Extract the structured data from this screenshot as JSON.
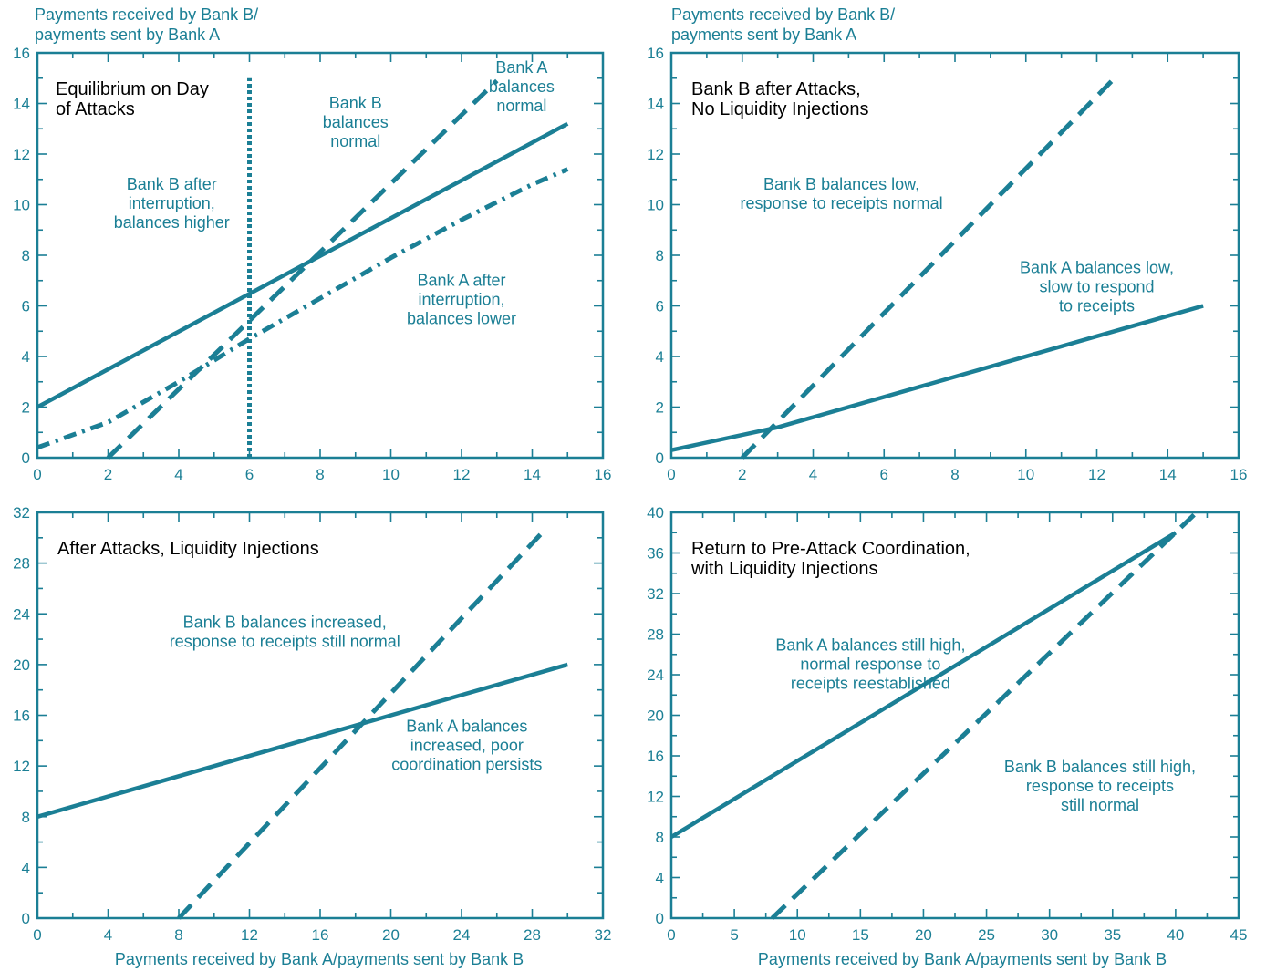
{
  "colors": {
    "accent": "#1b7f95",
    "title_text": "#000000",
    "background": "#ffffff"
  },
  "top_ylabel_line1": "Payments received by Bank B/",
  "top_ylabel_line2": "payments sent by Bank A",
  "bottom_xlabel": "Payments received by Bank A/payments sent by Bank B",
  "chart_data": [
    {
      "type": "line",
      "title_lines": [
        "Equilibrium on Day",
        "of Attacks"
      ],
      "xlim": [
        0,
        16
      ],
      "ylim": [
        0,
        16
      ],
      "xticks": [
        0,
        2,
        4,
        6,
        8,
        10,
        12,
        14,
        16
      ],
      "yticks": [
        0,
        2,
        4,
        6,
        8,
        10,
        12,
        14,
        16
      ],
      "grid": false,
      "series": [
        {
          "style": "solid",
          "points": [
            [
              0,
              2
            ],
            [
              15,
              13.2
            ]
          ]
        },
        {
          "style": "dashed",
          "points": [
            [
              2,
              0
            ],
            [
              13,
              14.9
            ]
          ]
        },
        {
          "style": "dashdot",
          "points": [
            [
              0,
              0.4
            ],
            [
              2,
              1.4
            ],
            [
              4,
              3.0
            ],
            [
              6,
              4.7
            ],
            [
              8,
              6.3
            ],
            [
              10,
              7.9
            ],
            [
              12,
              9.4
            ],
            [
              14,
              10.8
            ],
            [
              15,
              11.4
            ]
          ]
        },
        {
          "style": "dotted",
          "points": [
            [
              6,
              0
            ],
            [
              6,
              15
            ]
          ]
        }
      ],
      "annotations": [
        {
          "x": 13.7,
          "y": 15.2,
          "lines": [
            "Bank A",
            "balances",
            "normal"
          ]
        },
        {
          "x": 9.0,
          "y": 13.8,
          "lines": [
            "Bank B",
            "balances",
            "normal"
          ]
        },
        {
          "x": 3.8,
          "y": 10.6,
          "lines": [
            "Bank B after",
            "interruption,",
            "balances higher"
          ]
        },
        {
          "x": 12.0,
          "y": 6.8,
          "lines": [
            "Bank A after",
            "interruption,",
            "balances lower"
          ]
        }
      ]
    },
    {
      "type": "line",
      "title_lines": [
        "Bank B after Attacks,",
        "No Liquidity Injections"
      ],
      "xlim": [
        0,
        16
      ],
      "ylim": [
        0,
        16
      ],
      "xticks": [
        0,
        2,
        4,
        6,
        8,
        10,
        12,
        14,
        16
      ],
      "yticks": [
        0,
        2,
        4,
        6,
        8,
        10,
        12,
        14,
        16
      ],
      "grid": false,
      "series": [
        {
          "style": "solid",
          "points": [
            [
              0,
              0.3
            ],
            [
              3,
              1.2
            ],
            [
              15,
              6.0
            ]
          ]
        },
        {
          "style": "dashed",
          "points": [
            [
              2,
              0
            ],
            [
              12.5,
              15.0
            ]
          ]
        }
      ],
      "annotations": [
        {
          "x": 4.8,
          "y": 10.6,
          "lines": [
            "Bank B balances low,",
            "response to receipts normal"
          ]
        },
        {
          "x": 12.0,
          "y": 7.3,
          "lines": [
            "Bank A balances low,",
            "slow to respond",
            "to receipts"
          ]
        }
      ]
    },
    {
      "type": "line",
      "title_lines": [
        "After Attacks, Liquidity Injections"
      ],
      "xlim": [
        0,
        32
      ],
      "ylim": [
        0,
        32
      ],
      "xticks": [
        0,
        4,
        8,
        12,
        16,
        20,
        24,
        28,
        32
      ],
      "yticks": [
        0,
        4,
        8,
        12,
        16,
        20,
        24,
        28,
        32
      ],
      "grid": false,
      "series": [
        {
          "style": "solid",
          "points": [
            [
              0,
              8
            ],
            [
              30,
              20
            ]
          ]
        },
        {
          "style": "dashed",
          "points": [
            [
              8,
              0
            ],
            [
              28.5,
              30.3
            ]
          ]
        }
      ],
      "annotations": [
        {
          "x": 14.0,
          "y": 22.9,
          "lines": [
            "Bank B balances increased,",
            "response to receipts still normal"
          ]
        },
        {
          "x": 24.3,
          "y": 14.7,
          "lines": [
            "Bank A balances",
            "increased, poor",
            "coordination persists"
          ]
        }
      ]
    },
    {
      "type": "line",
      "title_lines": [
        "Return to Pre-Attack Coordination,",
        "with Liquidity Injections"
      ],
      "xlim": [
        0,
        45
      ],
      "ylim": [
        0,
        40
      ],
      "xticks": [
        0,
        5,
        10,
        15,
        20,
        25,
        30,
        35,
        40,
        45
      ],
      "yticks": [
        0,
        4,
        8,
        12,
        16,
        20,
        24,
        28,
        32,
        36,
        40
      ],
      "grid": false,
      "series": [
        {
          "style": "solid",
          "points": [
            [
              0,
              8
            ],
            [
              40,
              38
            ]
          ]
        },
        {
          "style": "dashed",
          "points": [
            [
              8,
              0
            ],
            [
              41.5,
              39.8
            ]
          ]
        }
      ],
      "annotations": [
        {
          "x": 15.8,
          "y": 26.4,
          "lines": [
            "Bank A balances still high,",
            "normal response to",
            "receipts reestablished"
          ]
        },
        {
          "x": 34.0,
          "y": 14.4,
          "lines": [
            "Bank B balances still high,",
            "response to receipts",
            "still normal"
          ]
        }
      ]
    }
  ]
}
